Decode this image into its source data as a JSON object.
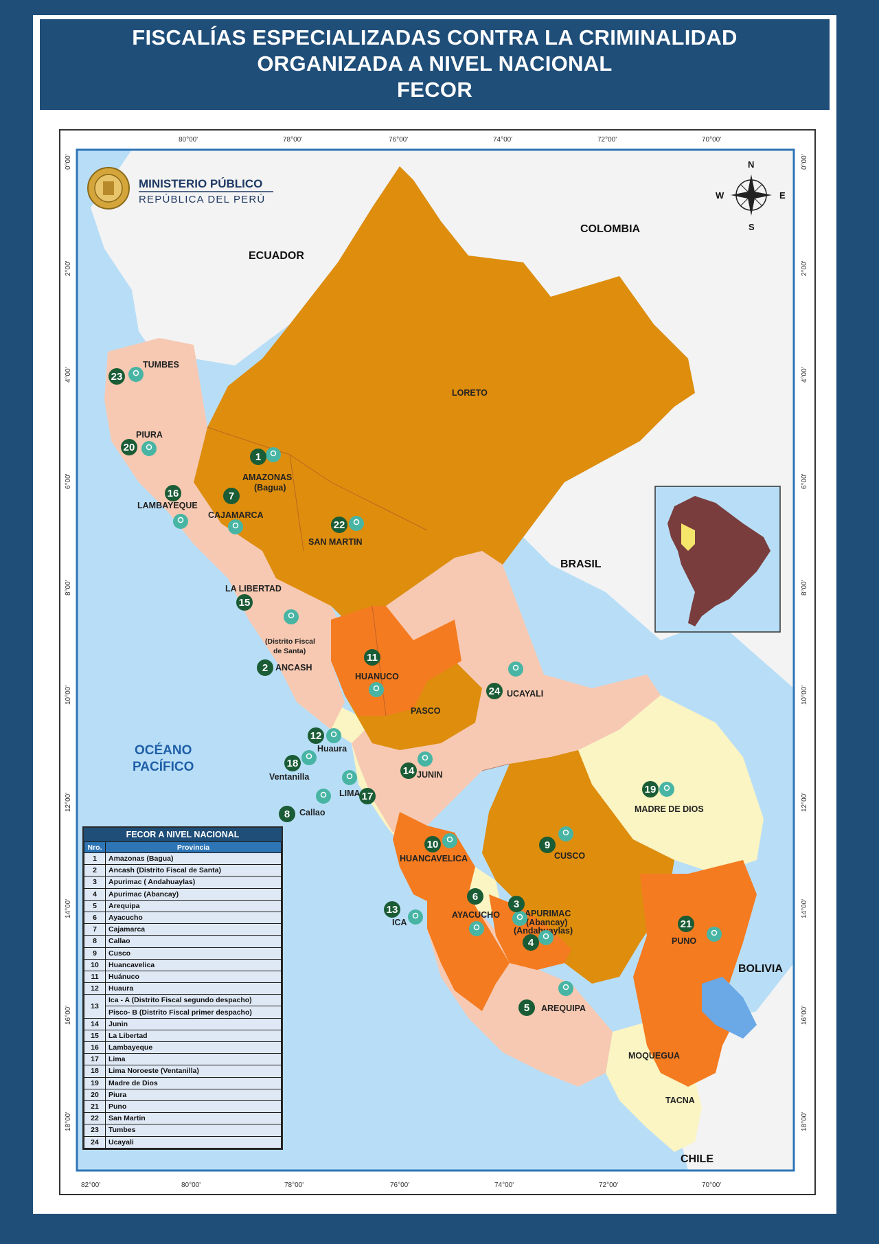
{
  "title": {
    "line1": "FISCALÍAS ESPECIALIZADAS CONTRA LA CRIMINALIDAD",
    "line2": "ORGANIZADA A NIVEL NACIONAL",
    "line3": "FECOR"
  },
  "logo": {
    "name": "MINISTERIO PÚBLICO",
    "subtitle": "REPÚBLICA DEL PERÚ",
    "icon": "ministry-seal-icon"
  },
  "compass": {
    "n": "N",
    "s": "S",
    "e": "E",
    "w": "W",
    "icon": "compass-rose-icon"
  },
  "graticule": {
    "lon": [
      "80°00'",
      "78°00'",
      "76°00'",
      "74°00'",
      "72°00'",
      "70°00'"
    ],
    "lon_bottom_first": "82°00'",
    "lat": [
      "0°00'",
      "2°00'",
      "4°00'",
      "6°00'",
      "8°00'",
      "10°00'",
      "12°00'",
      "14°00'",
      "16°00'",
      "18°00'"
    ]
  },
  "countries": {
    "ecuador": "ECUADOR",
    "colombia": "COLOMBIA",
    "brasil": "BRASIL",
    "bolivia": "BOLIVIA",
    "chile": "CHILE",
    "ocean1": "OCÉANO",
    "ocean2": "PACÍFICO"
  },
  "regions": {
    "tumbes": "TUMBES",
    "piura": "PIURA",
    "lambayeque": "LAMBAYEQUE",
    "amazonas": "AMAZONAS",
    "bagua": "(Bagua)",
    "cajamarca": "CAJAMARCA",
    "san_martin": "SAN MARTIN",
    "loreto": "LORETO",
    "la_libertad": "LA LIBERTAD",
    "distrito_santa1": "(Distrito Fiscal",
    "distrito_santa2": "de Santa)",
    "ancash": "ANCASH",
    "huanuco": "HUANUCO",
    "pasco": "PASCO",
    "ucayali": "UCAYALI",
    "huaura": "Huaura",
    "ventanilla": "Ventanilla",
    "lima": "LIMA",
    "callao": "Callao",
    "junin": "JUNIN",
    "madre_de_dios": "MADRE DE DIOS",
    "huancavelica": "HUANCAVELICA",
    "cusco": "CUSCO",
    "ica": "ICA",
    "ayacucho": "AYACUCHO",
    "apurimac": "APURIMAC",
    "abancay": "(Abancay)",
    "andahuaylas": "(Andahuaylas)",
    "puno": "PUNO",
    "arequipa": "AREQUIPA",
    "moquegua": "MOQUEGUA",
    "tacna": "TACNA"
  },
  "markers": [
    "1",
    "2",
    "3",
    "4",
    "5",
    "6",
    "7",
    "8",
    "9",
    "10",
    "11",
    "12",
    "13",
    "14",
    "15",
    "16",
    "17",
    "18",
    "19",
    "20",
    "21",
    "22",
    "23",
    "24"
  ],
  "colors": {
    "dark_orange": "#de8d0d",
    "bright_orange": "#f47b20",
    "peach": "#f7c9b2",
    "yellow": "#fbf4c3",
    "ocean": "#b8def7",
    "land_neighbour": "#f3f3f3",
    "marker_green": "#1a5c35",
    "pin_teal": "#48b5a4"
  },
  "legend": {
    "title": "FECOR A NIVEL NACIONAL",
    "col_nro": "Nro.",
    "col_prov": "Provincia",
    "rows": [
      [
        "1",
        "Amazonas (Bagua)"
      ],
      [
        "2",
        "Ancash (Distrito Fiscal de Santa)"
      ],
      [
        "3",
        "Apurimac ( Andahuaylas)"
      ],
      [
        "4",
        "Apurimac (Abancay)"
      ],
      [
        "5",
        "Arequipa"
      ],
      [
        "6",
        "Ayacucho"
      ],
      [
        "7",
        "Cajamarca"
      ],
      [
        "8",
        "Callao"
      ],
      [
        "9",
        "Cusco"
      ],
      [
        "10",
        "Huancavelica"
      ],
      [
        "11",
        "Huánuco"
      ],
      [
        "12",
        "Huaura"
      ],
      [
        "13",
        "Ica - A (Distrito Fiscal segundo despacho)"
      ],
      [
        "",
        "Pisco- B (Distrito Fiscal primer despacho)"
      ],
      [
        "14",
        "Junin"
      ],
      [
        "15",
        "La Libertad"
      ],
      [
        "16",
        "Lambayeque"
      ],
      [
        "17",
        "Lima"
      ],
      [
        "18",
        "Lima Noroeste (Ventanilla)"
      ],
      [
        "19",
        "Madre de Dios"
      ],
      [
        "20",
        "Piura"
      ],
      [
        "21",
        "Puno"
      ],
      [
        "22",
        "San Martin"
      ],
      [
        "23",
        "Tumbes"
      ],
      [
        "24",
        "Ucayali"
      ]
    ]
  }
}
